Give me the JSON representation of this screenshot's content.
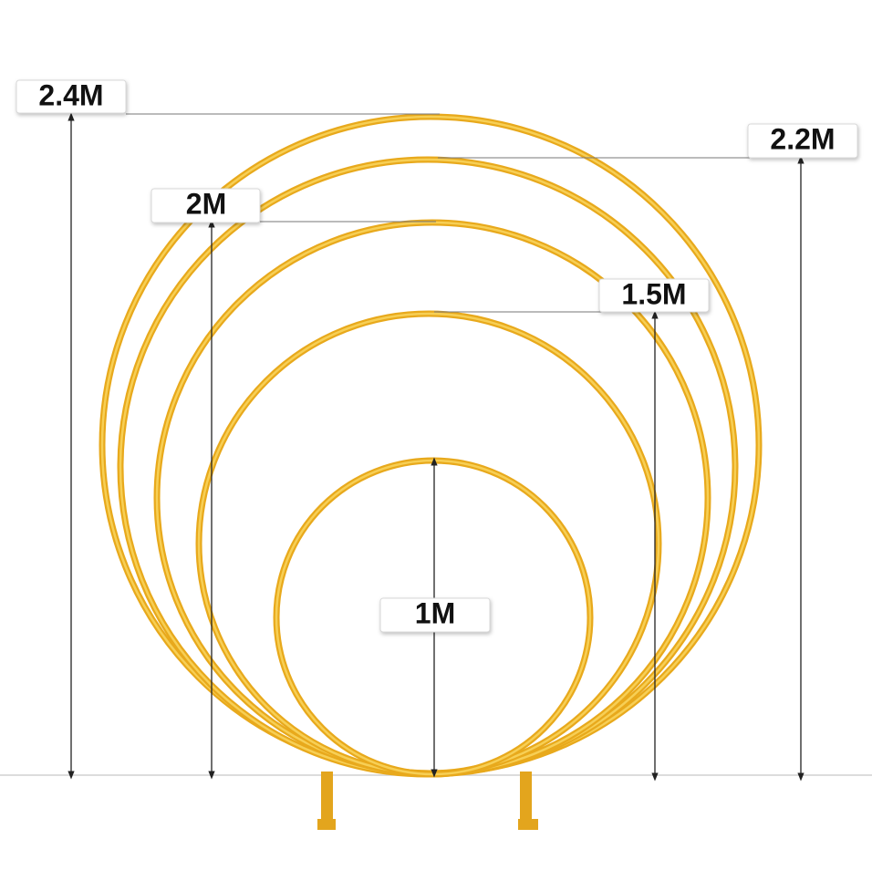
{
  "labels": [
    "2.4M",
    "2.2M",
    "2M",
    "1.5M",
    "1M"
  ]
}
